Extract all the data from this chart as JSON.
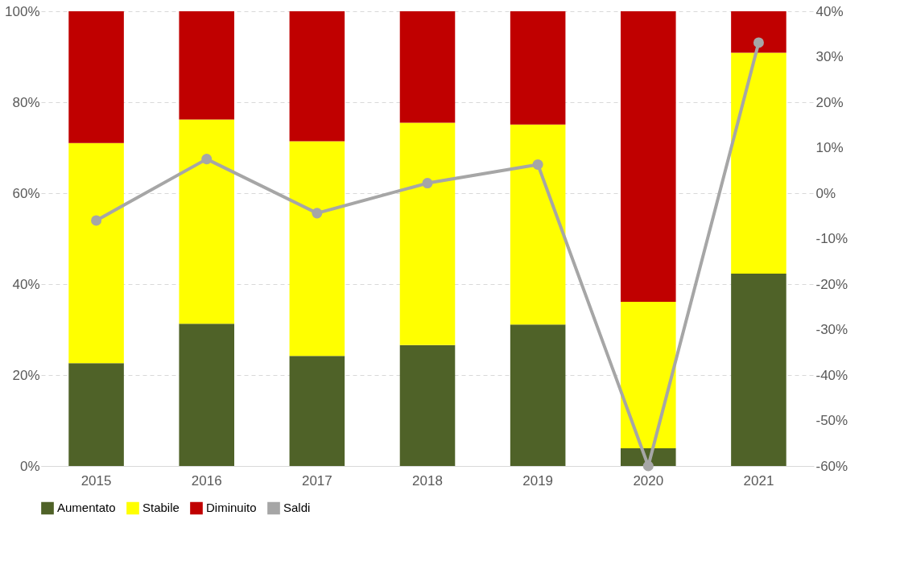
{
  "chart_data": {
    "type": "bar",
    "stacked": true,
    "categories": [
      "2015",
      "2016",
      "2017",
      "2018",
      "2019",
      "2020",
      "2021"
    ],
    "series": [
      {
        "name": "Aumentato",
        "color": "#4f6228",
        "values": [
          22.6,
          31.3,
          24.2,
          26.6,
          31.1,
          3.9,
          42.3
        ]
      },
      {
        "name": "Stabile",
        "color": "#ffff00",
        "values": [
          48.4,
          44.9,
          47.2,
          48.9,
          44.0,
          32.2,
          48.6
        ]
      },
      {
        "name": "Diminuito",
        "color": "#c00000",
        "values": [
          29.0,
          23.8,
          28.6,
          24.5,
          24.9,
          63.9,
          9.1
        ]
      },
      {
        "name": "Saldi",
        "color": "#a6a6a6",
        "type": "line",
        "axis": "y2",
        "values": [
          -6.0,
          7.5,
          -4.4,
          2.2,
          6.3,
          -60.0,
          33.1
        ]
      }
    ],
    "ylim": [
      0,
      100
    ],
    "yticks": [
      {
        "value": 0,
        "label": "0%"
      },
      {
        "value": 20,
        "label": "20%"
      },
      {
        "value": 40,
        "label": "40%"
      },
      {
        "value": 60,
        "label": "60%"
      },
      {
        "value": 80,
        "label": "80%"
      },
      {
        "value": 100,
        "label": "100%"
      }
    ],
    "y2lim": [
      -60,
      40
    ],
    "y2ticks": [
      {
        "value": -60,
        "label": "-60%"
      },
      {
        "value": -50,
        "label": "-50%"
      },
      {
        "value": -40,
        "label": "-40%"
      },
      {
        "value": -30,
        "label": "-30%"
      },
      {
        "value": -20,
        "label": "-20%"
      },
      {
        "value": -10,
        "label": "-10%"
      },
      {
        "value": 0,
        "label": "0%"
      },
      {
        "value": 10,
        "label": "10%"
      },
      {
        "value": 20,
        "label": "20%"
      },
      {
        "value": 30,
        "label": "30%"
      },
      {
        "value": 40,
        "label": "40%"
      }
    ],
    "grid": "y",
    "legend": "bottom",
    "marker": "circle",
    "line_style": "solid"
  }
}
